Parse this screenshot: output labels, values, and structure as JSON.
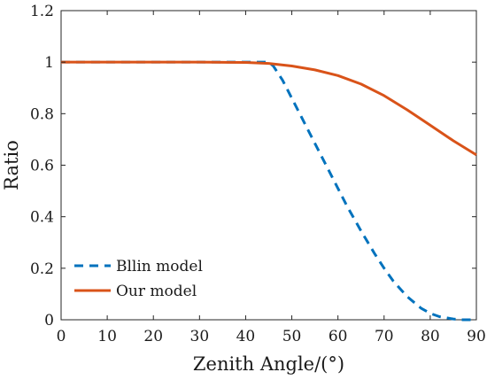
{
  "chart_data": {
    "type": "line",
    "xlabel": "Zenith Angle/(°)",
    "ylabel": "Ratio",
    "xlim": [
      0,
      90
    ],
    "ylim": [
      0,
      1.2
    ],
    "xticks": [
      0,
      10,
      20,
      30,
      40,
      50,
      60,
      70,
      80,
      90
    ],
    "yticks": [
      0,
      0.2,
      0.4,
      0.6,
      0.8,
      1,
      1.2
    ],
    "xtick_labels": [
      "0",
      "10",
      "20",
      "30",
      "40",
      "50",
      "60",
      "70",
      "80",
      "90"
    ],
    "ytick_labels": [
      "0",
      "0.2",
      "0.4",
      "0.6",
      "0.8",
      "1",
      "1.2"
    ],
    "grid": false,
    "legend_position": "bottom-left",
    "series": [
      {
        "name": "Bllin model",
        "color": "#0072BD",
        "style": "dashed",
        "x": [
          0,
          10,
          20,
          30,
          40,
          45,
          46,
          48,
          50,
          52,
          55,
          58,
          60,
          62,
          65,
          68,
          70,
          72,
          75,
          78,
          80,
          82,
          85,
          87,
          88,
          89,
          90
        ],
        "y": [
          1.0,
          1.0,
          1.0,
          1.0,
          1.0,
          1.0,
          0.985,
          0.93,
          0.86,
          0.79,
          0.685,
          0.58,
          0.51,
          0.44,
          0.345,
          0.255,
          0.2,
          0.15,
          0.09,
          0.045,
          0.025,
          0.012,
          0.003,
          0.0,
          0.0,
          0.0,
          0.0
        ]
      },
      {
        "name": "Our model",
        "color": "#D95319",
        "style": "solid",
        "x": [
          0,
          10,
          20,
          30,
          40,
          45,
          50,
          55,
          60,
          65,
          70,
          75,
          80,
          85,
          90
        ],
        "y": [
          1.0,
          1.0,
          1.0,
          1.0,
          0.999,
          0.995,
          0.985,
          0.97,
          0.948,
          0.915,
          0.87,
          0.815,
          0.755,
          0.695,
          0.64
        ]
      }
    ]
  }
}
